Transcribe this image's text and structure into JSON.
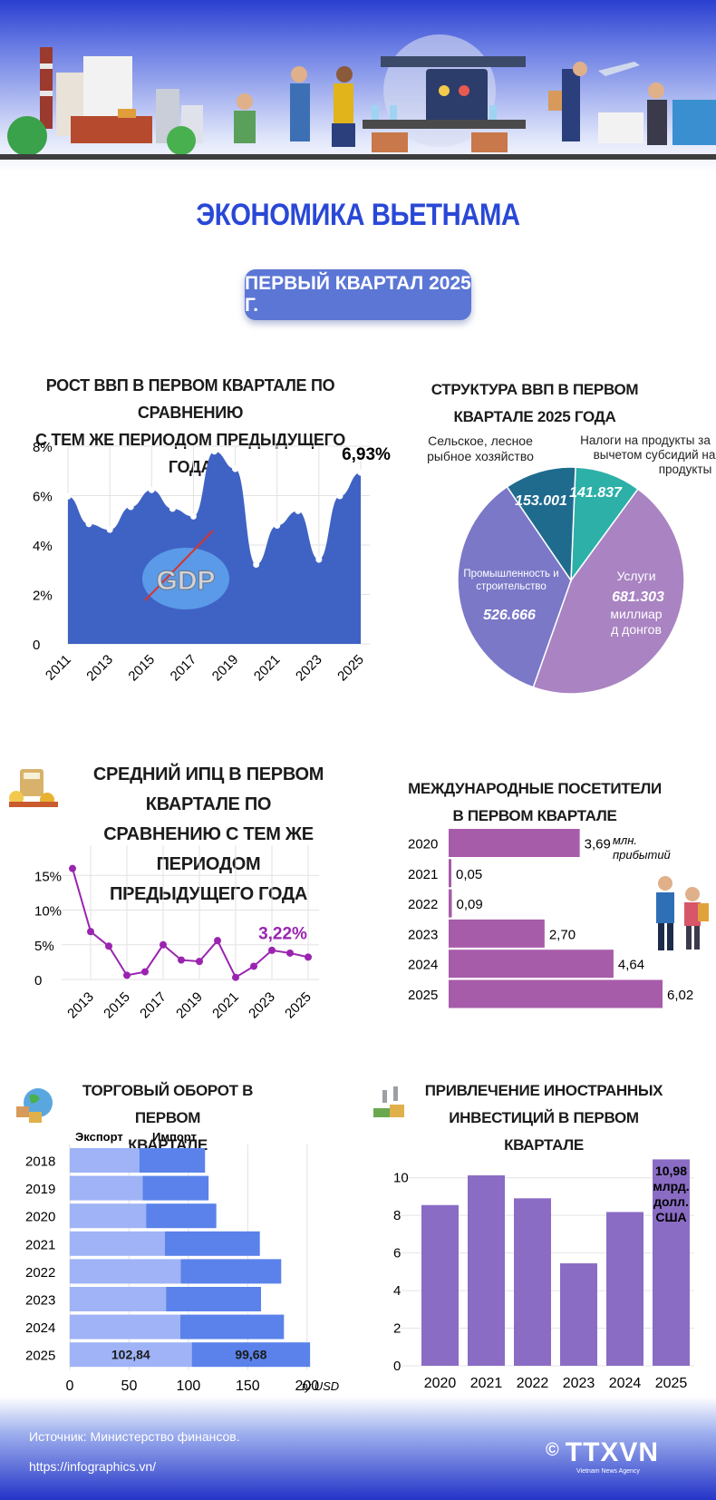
{
  "header": {
    "title": "ЭКОНОМИКА ВЬЕТНАМА",
    "period": "ПЕРВЫЙ КВАРТАЛ 2025 Г."
  },
  "colors": {
    "title_blue": "#2a48d6",
    "gdp_area": "#3f63c4",
    "cpi_line": "#9a24b0",
    "visitors_bar": "#a75ca9",
    "export_bar": "#9fb3f6",
    "import_bar": "#5a82ea",
    "fdi_bar": "#8a6cc4"
  },
  "sections": {
    "gdp_growth_title": [
      "РОСТ ВВП В ПЕРВОМ КВАРТАЛЕ ПО СРАВНЕНИЮ",
      "С ТЕМ ЖЕ ПЕРИОДОМ ПРЕДЫДУЩЕГО ГОДА"
    ],
    "gdp_structure_title": [
      "СТРУКТУРА ВВП В ПЕРВОМ",
      "КВАРТАЛЕ 2025 ГОДА"
    ],
    "cpi_title": [
      "СРЕДНИЙ ИПЦ В ПЕРВОМ КВАРТАЛЕ ПО",
      "СРАВНЕНИЮ С ТЕМ ЖЕ ПЕРИОДОМ",
      "ПРЕДЫДУЩЕГО ГОДА"
    ],
    "visitors_title": [
      "МЕЖДУНАРОДНЫЕ ПОСЕТИТЕЛИ",
      "В ПЕРВОМ КВАРТАЛЕ"
    ],
    "trade_title": [
      "ТОРГОВЫЙ ОБОРОТ В ПЕРВОМ",
      "КВАРТАЛЕ"
    ],
    "fdi_title": [
      "ПРИВЛЕЧЕНИЕ ИНОСТРАННЫХ",
      "ИНВЕСТИЦИЙ В ПЕРВОМ КВАРТАЛЕ"
    ]
  },
  "gdp_badge": "GDP",
  "chart_data": [
    {
      "type": "area",
      "id": "gdp_growth",
      "x": [
        2011,
        2012,
        2013,
        2014,
        2015,
        2016,
        2017,
        2018,
        2019,
        2020,
        2021,
        2022,
        2023,
        2024,
        2025
      ],
      "values": [
        5.97,
        4.85,
        4.62,
        5.54,
        6.23,
        5.47,
        5.16,
        7.79,
        7.08,
        3.21,
        4.79,
        5.38,
        3.41,
        5.98,
        6.93
      ],
      "x_tick_labels": [
        "2011",
        "2013",
        "2015",
        "2017",
        "2019",
        "2021",
        "2023",
        "2025"
      ],
      "y_tick_labels": [
        "0",
        "2%",
        "4%",
        "6%",
        "8%"
      ],
      "ylim": [
        0,
        8
      ],
      "highlight": "6,93%"
    },
    {
      "type": "pie",
      "id": "gdp_structure",
      "unit": "миллиард донгов",
      "slices": [
        {
          "label": "Услуги",
          "value": 681.303,
          "value_label": "681.303",
          "color": "#a983c2"
        },
        {
          "label": "Промышленность и строительство",
          "value": 526.666,
          "value_label": "526.666",
          "color": "#7b78c8"
        },
        {
          "label": "Сельское, лесное рыбное хозяйство",
          "value": 153.001,
          "value_label": "153.001",
          "color": "#1f6b8e"
        },
        {
          "label": "Налоги на продукты за вычетом субсидий на продукты",
          "value": 141.837,
          "value_label": "141.837",
          "color": "#2cb0a8"
        }
      ],
      "labels": {
        "agri": [
          "Сельское, лесное",
          "рыбное хозяйство"
        ],
        "tax": [
          "Налоги на продукты за",
          "вычетом субсидий на",
          "продукты"
        ],
        "industry": [
          "Промышленность и",
          "строительство"
        ],
        "services": "Услуги",
        "services_unit": [
          "миллиар",
          "д донгов"
        ]
      }
    },
    {
      "type": "line",
      "id": "cpi",
      "x": [
        2012,
        2013,
        2014,
        2015,
        2016,
        2017,
        2018,
        2019,
        2020,
        2021,
        2022,
        2023,
        2024,
        2025
      ],
      "values": [
        16.0,
        6.9,
        4.8,
        0.6,
        1.1,
        5.0,
        2.8,
        2.6,
        5.6,
        0.3,
        1.9,
        4.2,
        3.8,
        3.22
      ],
      "x_tick_labels": [
        "2013",
        "2015",
        "2017",
        "2019",
        "2021",
        "2023",
        "2025"
      ],
      "y_tick_labels": [
        "0",
        "5%",
        "10%",
        "15%"
      ],
      "ylim": [
        0,
        17
      ],
      "highlight": "3,22%"
    },
    {
      "type": "bar",
      "id": "visitors",
      "orientation": "horizontal",
      "categories": [
        "2020",
        "2021",
        "2022",
        "2023",
        "2024",
        "2025"
      ],
      "values": [
        3.69,
        0.05,
        0.09,
        2.7,
        4.64,
        6.02
      ],
      "value_labels": [
        "3,69",
        "0,05",
        "0,09",
        "2,70",
        "4,64",
        "6,02"
      ],
      "unit_lines": [
        "млн.",
        "прибытий"
      ]
    },
    {
      "type": "bar",
      "id": "trade",
      "orientation": "horizontal",
      "stacked": true,
      "categories": [
        "2018",
        "2019",
        "2020",
        "2021",
        "2022",
        "2023",
        "2024",
        "2025"
      ],
      "series": [
        {
          "name": "Экспорт",
          "values": [
            58.6,
            61.4,
            64.3,
            80.2,
            93.5,
            81.1,
            93.1,
            102.84
          ]
        },
        {
          "name": "Импорт",
          "values": [
            55.4,
            55.6,
            59.2,
            80.0,
            84.7,
            80.1,
            87.4,
            99.68
          ]
        }
      ],
      "value_labels": [
        "102,84",
        "99,68"
      ],
      "x_tick_labels": [
        "0",
        "50",
        "100",
        "150",
        "200"
      ],
      "xlim": [
        0,
        220
      ],
      "unit": "tỷ USD"
    },
    {
      "type": "bar",
      "id": "fdi",
      "categories": [
        "2020",
        "2021",
        "2022",
        "2023",
        "2024",
        "2025"
      ],
      "values": [
        8.55,
        10.13,
        8.91,
        5.45,
        8.18,
        10.98
      ],
      "y_tick_labels": [
        "0",
        "2",
        "4",
        "6",
        "8",
        "10"
      ],
      "ylim": [
        0,
        11
      ],
      "highlight_lines": [
        "10,98",
        "млрд.",
        "долл.",
        "США"
      ]
    }
  ],
  "footer": {
    "source": "Источник: Министерство финансов.",
    "url": "https://infographics.vn/",
    "copyright": "©",
    "logo": "TTXVN",
    "logo_sub": "Vietnam News Agency"
  }
}
